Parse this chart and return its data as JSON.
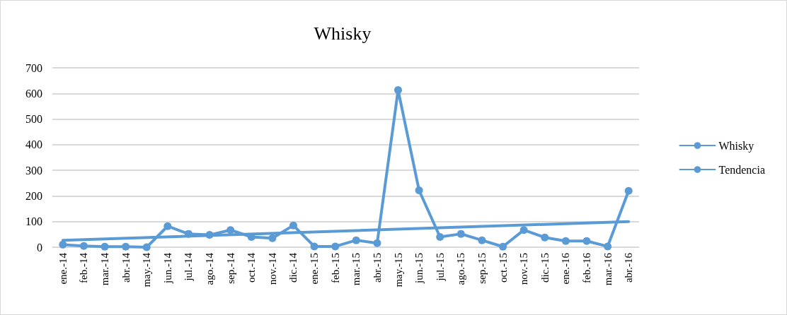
{
  "chart_data": {
    "type": "line",
    "title": "Whisky",
    "categories": [
      "ene.-14",
      "feb.-14",
      "mar.-14",
      "abr.-14",
      "may.-14",
      "jun.-14",
      "jul.-14",
      "ago.-14",
      "sep.-14",
      "oct.-14",
      "nov.-14",
      "dic.-14",
      "ene.-15",
      "feb.-15",
      "mar.-15",
      "abr.-15",
      "may.-15",
      "jun.-15",
      "jul.-15",
      "ago.-15",
      "sep.-15",
      "oct.-15",
      "nov.-15",
      "dic.-15",
      "ene.-16",
      "feb.-16",
      "mar.-16",
      "abr.-16"
    ],
    "series": [
      {
        "name": "Whisky",
        "color": "#5b9bd5",
        "marker": "circle",
        "values": [
          10,
          5,
          2,
          2,
          0,
          82,
          52,
          48,
          67,
          40,
          35,
          85,
          3,
          3,
          27,
          16,
          613,
          222,
          40,
          52,
          27,
          2,
          67,
          38,
          24,
          24,
          3,
          220
        ]
      },
      {
        "name": "Tendencia",
        "color": "#5b9bd5",
        "marker": "none",
        "x": [
          "ene.-14",
          "abr.-16"
        ],
        "values": [
          27,
          100
        ]
      }
    ],
    "ylim": [
      0,
      700
    ],
    "yticks": [
      0,
      100,
      200,
      300,
      400,
      500,
      600,
      700
    ],
    "grid": "y",
    "legend": "right",
    "line_style": "solid"
  }
}
